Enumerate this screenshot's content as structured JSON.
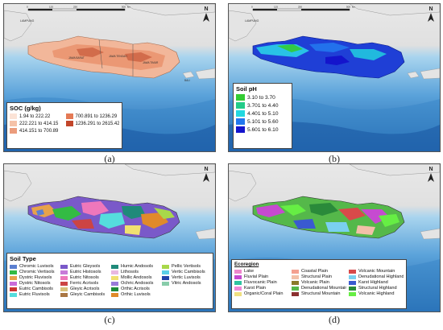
{
  "map_labels": {
    "lampung": "LAMPUNG",
    "jawa_barat": "JAWA BARAT",
    "jawa_tengah": "JAWA TENGAH",
    "jawa_timur": "JAWA TIMUR",
    "bali": "BALI",
    "scale_ticks": [
      "0",
      "125",
      "250",
      "500"
    ],
    "scale_unit": "km",
    "north": "N"
  },
  "colors": {
    "sea_deep": "#1a5fa8",
    "sea_mid": "#3e8ed0",
    "sea_light": "#9ccbe8",
    "land_grey": "#e4e4e4"
  },
  "panels": [
    {
      "caption": "(a)",
      "legend": {
        "title": "SOC (g/kg)",
        "items": [
          {
            "label": "1.94 to 222.22",
            "color": "#fbe3d6"
          },
          {
            "label": "700.891 to 1236.29",
            "color": "#e47a55"
          },
          {
            "label": "222.221 to 414.15",
            "color": "#f5c2a8"
          },
          {
            "label": "1236.291 to 2615.42",
            "color": "#c2462a"
          },
          {
            "label": "414.151 to 700.89",
            "color": "#eb9c7c"
          }
        ]
      }
    },
    {
      "caption": "(b)",
      "legend": {
        "title": "Soil pH",
        "items": [
          {
            "label": "3.10 to 3.70",
            "color": "#33cc33"
          },
          {
            "label": "3.701 to 4.40",
            "color": "#22cc88"
          },
          {
            "label": "4.401 to 5.10",
            "color": "#22d8e0"
          },
          {
            "label": "5.101 to 5.60",
            "color": "#2277ee"
          },
          {
            "label": "5.601 to 6.10",
            "color": "#1414cc"
          }
        ]
      }
    },
    {
      "caption": "(c)",
      "legend": {
        "title": "Soil Type",
        "items": [
          {
            "label": "Chromic Luvisols",
            "color": "#5b7fd1"
          },
          {
            "label": "Eutric Gleysols",
            "color": "#7a59c9"
          },
          {
            "label": "Humic Andosols",
            "color": "#1f8a7a"
          },
          {
            "label": "Pellic Vertisols",
            "color": "#a8d84a"
          },
          {
            "label": "Chromic Vertisols",
            "color": "#33bb44"
          },
          {
            "label": "Eutric Histosols",
            "color": "#c77ad8"
          },
          {
            "label": "Lithosols",
            "color": "#e8b8e0"
          },
          {
            "label": "Vertic Cambisols",
            "color": "#5ad0e8"
          },
          {
            "label": "Dystric Fluvisols",
            "color": "#e7a24a"
          },
          {
            "label": "Eutric Nitosols",
            "color": "#ee77bb"
          },
          {
            "label": "Mollic Andosols",
            "color": "#f0e070"
          },
          {
            "label": "Vertic Luvisols",
            "color": "#2244aa"
          },
          {
            "label": "Dystric Nitosols",
            "color": "#c96bd9"
          },
          {
            "label": "Ferric Acrisols",
            "color": "#cc4444"
          },
          {
            "label": "Ochric Andosols",
            "color": "#9a7ad8"
          },
          {
            "label": "Vitric Andosols",
            "color": "#88ccaa"
          },
          {
            "label": "Eutric Cambisols",
            "color": "#cc3333"
          },
          {
            "label": "Gleyic Acrisols",
            "color": "#d8c07a"
          },
          {
            "label": "Orthic Acrisols",
            "color": "#1e8a3a"
          },
          {
            "label": "",
            "color": ""
          },
          {
            "label": "Eutric Fluvisols",
            "color": "#55dddd"
          },
          {
            "label": "Gleyic Cambisols",
            "color": "#aa7744"
          },
          {
            "label": "Orthic Luvisols",
            "color": "#e08a2a"
          },
          {
            "label": "",
            "color": ""
          }
        ]
      }
    },
    {
      "caption": "(d)",
      "legend": {
        "title": "Ecoregion",
        "items": [
          {
            "label": "Lake",
            "color": "#ee88cc"
          },
          {
            "label": "Coastal Plain",
            "color": "#f4a090"
          },
          {
            "label": "Volcanic Mountain",
            "color": "#d84a4a"
          },
          {
            "label": "Fluvial Plain",
            "color": "#c64ad0"
          },
          {
            "label": "Structural Plain",
            "color": "#f2c0a8"
          },
          {
            "label": "Denudational Highland",
            "color": "#7ad0f0"
          },
          {
            "label": "Fluvocanic Plain",
            "color": "#2ec4a0"
          },
          {
            "label": "Volcanic Plain",
            "color": "#8a7a2a"
          },
          {
            "label": "Karst Highland",
            "color": "#3a5ad0"
          },
          {
            "label": "Karst Plain",
            "color": "#f088d8"
          },
          {
            "label": "Denudational Mountain",
            "color": "#55b84a"
          },
          {
            "label": "Structural Highland",
            "color": "#2a8a3a"
          },
          {
            "label": "Organic/Coral Plain",
            "color": "#f0e080"
          },
          {
            "label": "Structural Mountain",
            "color": "#8a3030"
          },
          {
            "label": "Volcanic Highland",
            "color": "#66ee44"
          }
        ]
      }
    }
  ]
}
